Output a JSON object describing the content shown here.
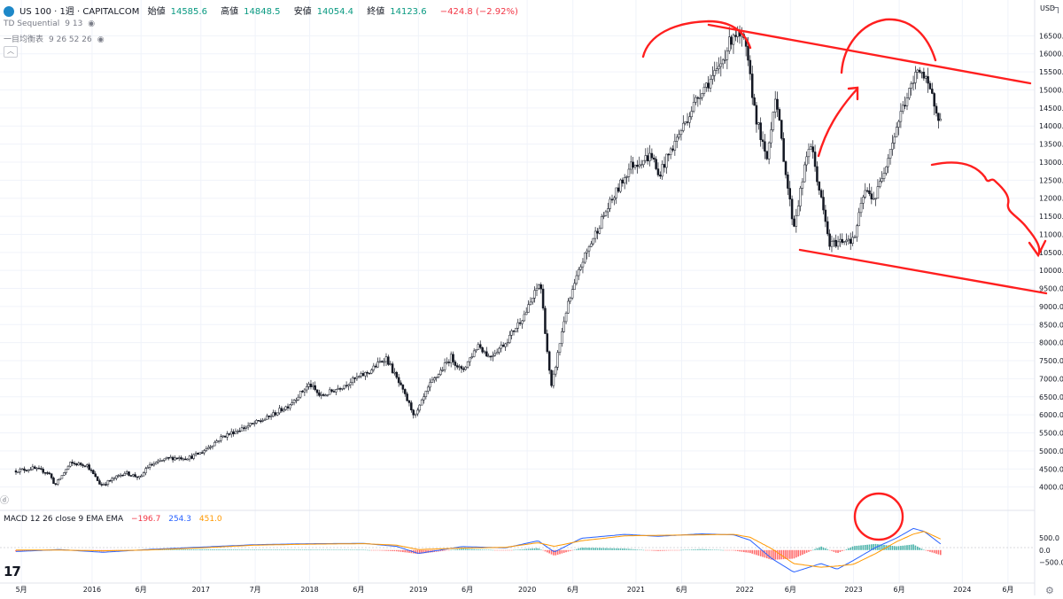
{
  "header": {
    "symbol": "US 100 · 1週 · CAPITALCOM",
    "open_label": "始値",
    "open_value": "14585.6",
    "high_label": "高値",
    "high_value": "14848.5",
    "low_label": "安値",
    "low_value": "14054.4",
    "close_label": "終値",
    "close_value": "14123.6",
    "change": "−424.8 (−2.92%)",
    "currency": "USD"
  },
  "indicators": [
    {
      "name": "TD Sequential",
      "params": "9 13"
    },
    {
      "name": "一目均衡表",
      "params": "9 26 52 26"
    }
  ],
  "macd_legend": {
    "label": "MACD 12 26 close 9 EMA EMA",
    "hist_value": "−196.7",
    "macd_value": "254.3",
    "signal_value": "451.0"
  },
  "colors": {
    "up": "#089981",
    "down": "#f23645",
    "macd_line": "#2962ff",
    "signal_line": "#ff9800",
    "annotation": "#ff1f1f",
    "axis_text": "#131722",
    "grid": "#f0f3fa"
  },
  "chart_data": {
    "type": "candlestick",
    "interval": "1W",
    "ylim": [
      3500,
      17000
    ],
    "y_ticks": [
      4000,
      4500,
      5000,
      5500,
      6000,
      6500,
      7000,
      7500,
      8000,
      8500,
      9000,
      9500,
      10000,
      10500,
      11000,
      11500,
      12000,
      12500,
      13000,
      13500,
      14000,
      14500,
      15000,
      15500,
      16000,
      16500
    ],
    "y_tick_labels": [
      "4000.0",
      "4500.0",
      "5000.0",
      "5500.0",
      "6000.0",
      "6500.0",
      "7000.0",
      "7500.0",
      "8000.0",
      "8500.0",
      "9000.0",
      "9500.0",
      "10000.0",
      "10500.0",
      "11000.0",
      "11500.0",
      "12000.0",
      "12500.0",
      "13000.0",
      "13500.0",
      "14000.0",
      "14500.0",
      "15000.0",
      "15500.0",
      "16000.0",
      "16500.0"
    ],
    "x_labels": [
      "5月",
      "2016",
      "6月",
      "2017",
      "7月",
      "2018",
      "6月",
      "2019",
      "6月",
      "2020",
      "6月",
      "2021",
      "6月",
      "2022",
      "6月",
      "2023",
      "6月",
      "2024",
      "6月"
    ],
    "x_label_t": [
      2015.35,
      2016.0,
      2016.45,
      2017.0,
      2017.5,
      2018.0,
      2018.45,
      2019.0,
      2019.45,
      2020.0,
      2020.42,
      2021.0,
      2021.42,
      2022.0,
      2022.42,
      2023.0,
      2023.42,
      2024.0,
      2024.42
    ],
    "x_range": [
      2015.3,
      2024.6
    ],
    "price_path": [
      [
        2015.3,
        4450
      ],
      [
        2015.45,
        4520
      ],
      [
        2015.6,
        4400
      ],
      [
        2015.66,
        4050
      ],
      [
        2015.8,
        4650
      ],
      [
        2015.95,
        4620
      ],
      [
        2016.08,
        4050
      ],
      [
        2016.15,
        4150
      ],
      [
        2016.3,
        4400
      ],
      [
        2016.45,
        4250
      ],
      [
        2016.5,
        4550
      ],
      [
        2016.7,
        4800
      ],
      [
        2016.9,
        4820
      ],
      [
        2017.0,
        4950
      ],
      [
        2017.2,
        5400
      ],
      [
        2017.4,
        5650
      ],
      [
        2017.6,
        5900
      ],
      [
        2017.8,
        6250
      ],
      [
        2018.0,
        6850
      ],
      [
        2018.1,
        6500
      ],
      [
        2018.3,
        6800
      ],
      [
        2018.55,
        7200
      ],
      [
        2018.7,
        7600
      ],
      [
        2018.8,
        7000
      ],
      [
        2018.97,
        5950
      ],
      [
        2019.1,
        6800
      ],
      [
        2019.3,
        7600
      ],
      [
        2019.4,
        7200
      ],
      [
        2019.55,
        7950
      ],
      [
        2019.65,
        7600
      ],
      [
        2019.8,
        8000
      ],
      [
        2020.0,
        8900
      ],
      [
        2020.12,
        9700
      ],
      [
        2020.22,
        6700
      ],
      [
        2020.35,
        8800
      ],
      [
        2020.5,
        10200
      ],
      [
        2020.7,
        11500
      ],
      [
        2020.95,
        12900
      ],
      [
        2021.15,
        13200
      ],
      [
        2021.2,
        12600
      ],
      [
        2021.4,
        13800
      ],
      [
        2021.6,
        15000
      ],
      [
        2021.75,
        15500
      ],
      [
        2021.9,
        16600
      ],
      [
        2022.0,
        16300
      ],
      [
        2022.1,
        14300
      ],
      [
        2022.2,
        13000
      ],
      [
        2022.28,
        14900
      ],
      [
        2022.4,
        12200
      ],
      [
        2022.45,
        11200
      ],
      [
        2022.6,
        13600
      ],
      [
        2022.7,
        12000
      ],
      [
        2022.78,
        10700
      ],
      [
        2022.95,
        10900
      ],
      [
        2023.0,
        10800
      ],
      [
        2023.1,
        12200
      ],
      [
        2023.2,
        12000
      ],
      [
        2023.3,
        13000
      ],
      [
        2023.45,
        14500
      ],
      [
        2023.55,
        15200
      ],
      [
        2023.6,
        15700
      ],
      [
        2023.68,
        15100
      ],
      [
        2023.75,
        14600
      ],
      [
        2023.8,
        14123
      ]
    ],
    "macd": {
      "ylim": [
        -1200,
        1400
      ],
      "y_ticks": [
        -500,
        0,
        500
      ],
      "y_tick_labels": [
        "−500.0",
        "0.0",
        "500.0"
      ],
      "macd_path": [
        [
          2015.3,
          -60
        ],
        [
          2015.7,
          20
        ],
        [
          2016.1,
          -90
        ],
        [
          2016.5,
          20
        ],
        [
          2017.0,
          120
        ],
        [
          2017.5,
          220
        ],
        [
          2018.0,
          260
        ],
        [
          2018.5,
          270
        ],
        [
          2018.8,
          150
        ],
        [
          2019.0,
          -140
        ],
        [
          2019.4,
          140
        ],
        [
          2019.8,
          90
        ],
        [
          2020.1,
          380
        ],
        [
          2020.25,
          -80
        ],
        [
          2020.5,
          480
        ],
        [
          2020.9,
          640
        ],
        [
          2021.2,
          560
        ],
        [
          2021.6,
          660
        ],
        [
          2021.9,
          620
        ],
        [
          2022.05,
          400
        ],
        [
          2022.25,
          -350
        ],
        [
          2022.45,
          -900
        ],
        [
          2022.7,
          -550
        ],
        [
          2022.85,
          -780
        ],
        [
          2023.0,
          -420
        ],
        [
          2023.2,
          100
        ],
        [
          2023.4,
          500
        ],
        [
          2023.55,
          880
        ],
        [
          2023.65,
          760
        ],
        [
          2023.8,
          250
        ]
      ],
      "signal_path": [
        [
          2015.3,
          0
        ],
        [
          2015.7,
          0
        ],
        [
          2016.1,
          -30
        ],
        [
          2016.5,
          0
        ],
        [
          2017.0,
          90
        ],
        [
          2017.5,
          200
        ],
        [
          2018.0,
          240
        ],
        [
          2018.5,
          260
        ],
        [
          2018.8,
          200
        ],
        [
          2019.0,
          20
        ],
        [
          2019.4,
          80
        ],
        [
          2019.8,
          110
        ],
        [
          2020.1,
          300
        ],
        [
          2020.25,
          150
        ],
        [
          2020.5,
          380
        ],
        [
          2020.9,
          580
        ],
        [
          2021.2,
          600
        ],
        [
          2021.6,
          620
        ],
        [
          2021.9,
          640
        ],
        [
          2022.05,
          520
        ],
        [
          2022.25,
          50
        ],
        [
          2022.45,
          -550
        ],
        [
          2022.7,
          -700
        ],
        [
          2022.85,
          -650
        ],
        [
          2023.0,
          -580
        ],
        [
          2023.2,
          -150
        ],
        [
          2023.4,
          350
        ],
        [
          2023.55,
          650
        ],
        [
          2023.65,
          760
        ],
        [
          2023.8,
          451
        ]
      ]
    }
  }
}
